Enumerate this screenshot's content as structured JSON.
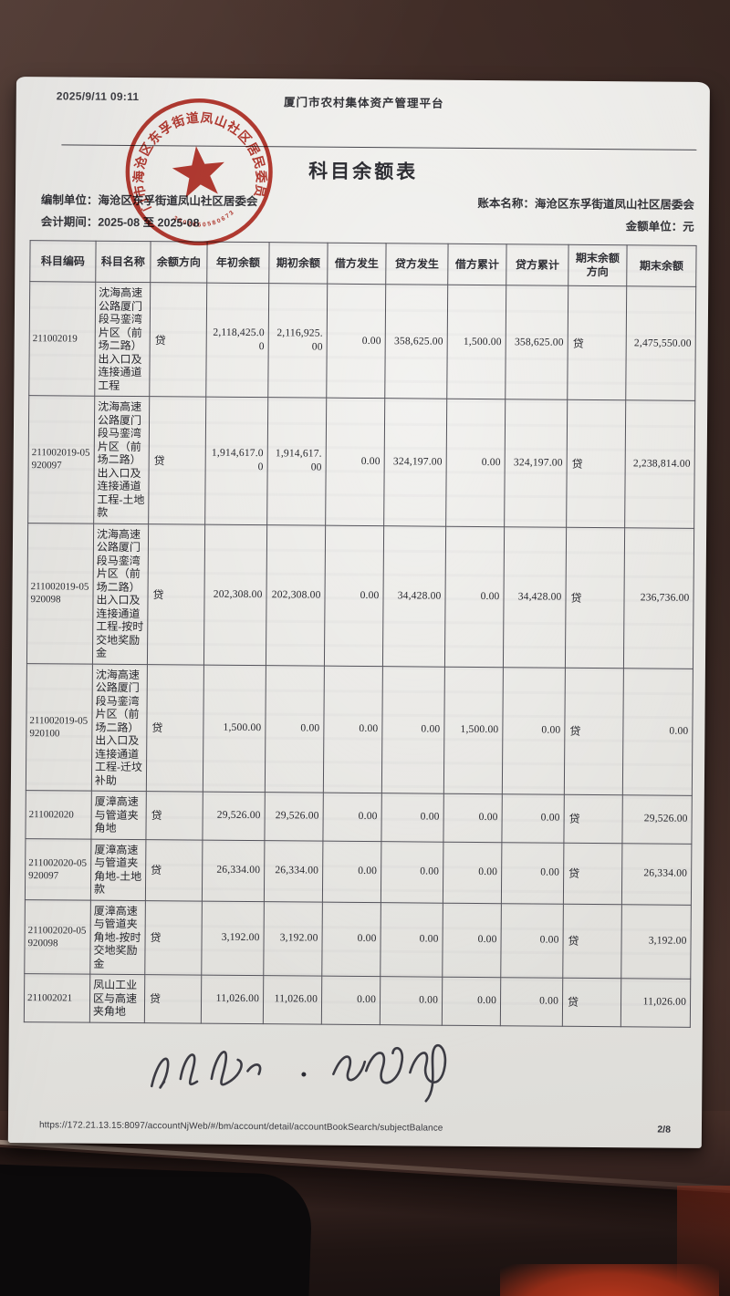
{
  "page_header": {
    "timestamp": "2025/9/11 09:11",
    "site_title": "厦门市农村集体资产管理平台"
  },
  "report": {
    "title": "科目余额表",
    "prepared_by": "编制单位：海沧区东孚街道凤山社区居委会",
    "period": "会计期间：2025-08 至 2025-08",
    "book_name": "账本名称：海沧区东孚街道凤山社区居委会",
    "unit": "金额单位：元"
  },
  "stamp": {
    "ring_text": "厦门市海沧区东孚街道凤山社区居民委员会",
    "code": "3902050580673",
    "color": "#b5271d"
  },
  "table": {
    "headers": [
      "科目编码",
      "科目名称",
      "余额方向",
      "年初余额",
      "期初余额",
      "借方发生",
      "贷方发生",
      "借方累计",
      "贷方累计",
      "期末余额方向",
      "期末余额"
    ],
    "rows": [
      {
        "code": "211002019",
        "name": "沈海高速公路厦门段马銮湾片区（前场二路）出入口及连接通道工程",
        "dir": "贷",
        "year_open": "2,118,425.00",
        "period_open": "2,116,925.00",
        "debit": "0.00",
        "credit": "358,625.00",
        "debit_cum": "1,500.00",
        "credit_cum": "358,625.00",
        "end_dir": "贷",
        "end_bal": "2,475,550.00"
      },
      {
        "code": "211002019-05920097",
        "name": "沈海高速公路厦门段马銮湾片区（前场二路）出入口及连接通道工程-土地款",
        "dir": "贷",
        "year_open": "1,914,617.00",
        "period_open": "1,914,617.00",
        "debit": "0.00",
        "credit": "324,197.00",
        "debit_cum": "0.00",
        "credit_cum": "324,197.00",
        "end_dir": "贷",
        "end_bal": "2,238,814.00"
      },
      {
        "code": "211002019-05920098",
        "name": "沈海高速公路厦门段马銮湾片区（前场二路）出入口及连接通道工程-按时交地奖励金",
        "dir": "贷",
        "year_open": "202,308.00",
        "period_open": "202,308.00",
        "debit": "0.00",
        "credit": "34,428.00",
        "debit_cum": "0.00",
        "credit_cum": "34,428.00",
        "end_dir": "贷",
        "end_bal": "236,736.00"
      },
      {
        "code": "211002019-05920100",
        "name": "沈海高速公路厦门段马銮湾片区（前场二路）出入口及连接通道工程-迁坟补助",
        "dir": "贷",
        "year_open": "1,500.00",
        "period_open": "0.00",
        "debit": "0.00",
        "credit": "0.00",
        "debit_cum": "1,500.00",
        "credit_cum": "0.00",
        "end_dir": "贷",
        "end_bal": "0.00"
      },
      {
        "code": "211002020",
        "name": "厦漳高速与管道夹角地",
        "dir": "贷",
        "year_open": "29,526.00",
        "period_open": "29,526.00",
        "debit": "0.00",
        "credit": "0.00",
        "debit_cum": "0.00",
        "credit_cum": "0.00",
        "end_dir": "贷",
        "end_bal": "29,526.00"
      },
      {
        "code": "211002020-05920097",
        "name": "厦漳高速与管道夹角地-土地款",
        "dir": "贷",
        "year_open": "26,334.00",
        "period_open": "26,334.00",
        "debit": "0.00",
        "credit": "0.00",
        "debit_cum": "0.00",
        "credit_cum": "0.00",
        "end_dir": "贷",
        "end_bal": "26,334.00"
      },
      {
        "code": "211002020-05920098",
        "name": "厦漳高速与管道夹角地-按时交地奖励金",
        "dir": "贷",
        "year_open": "3,192.00",
        "period_open": "3,192.00",
        "debit": "0.00",
        "credit": "0.00",
        "debit_cum": "0.00",
        "credit_cum": "0.00",
        "end_dir": "贷",
        "end_bal": "3,192.00"
      },
      {
        "code": "211002021",
        "name": "凤山工业区与高速夹角地",
        "dir": "贷",
        "year_open": "11,026.00",
        "period_open": "11,026.00",
        "debit": "0.00",
        "credit": "0.00",
        "debit_cum": "0.00",
        "credit_cum": "0.00",
        "end_dir": "贷",
        "end_bal": "11,026.00"
      }
    ]
  },
  "page_footer": {
    "url": "https://172.21.13.15:8097/accountNjWeb/#/bm/account/detail/accountBookSearch/subjectBalance",
    "page_number": "2/8"
  }
}
